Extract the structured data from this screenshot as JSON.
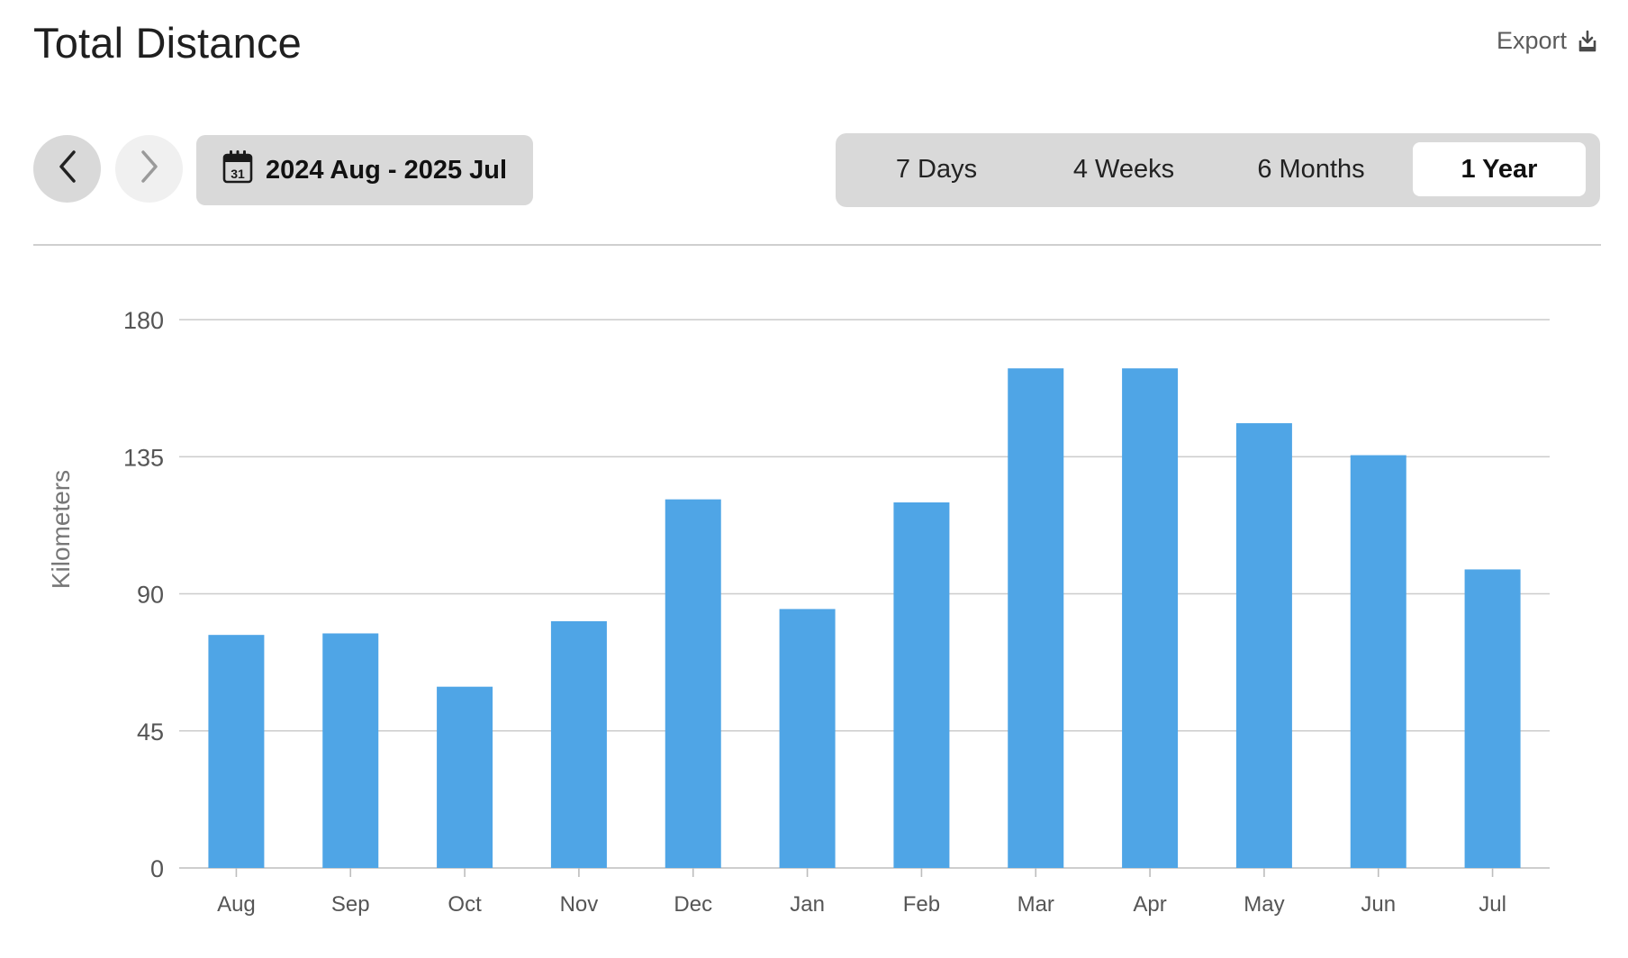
{
  "header": {
    "title": "Total Distance",
    "export_label": "Export"
  },
  "toolbar": {
    "date_range": "2024 Aug - 2025 Jul",
    "calendar_day": "31",
    "tabs": [
      {
        "label": "7 Days",
        "active": false
      },
      {
        "label": "4 Weeks",
        "active": false
      },
      {
        "label": "6 Months",
        "active": false
      },
      {
        "label": "1 Year",
        "active": true
      }
    ]
  },
  "colors": {
    "bar": "#4fa5e6",
    "grid": "#cccccc",
    "axis_text": "#555555"
  },
  "chart_data": {
    "type": "bar",
    "title": "Total Distance",
    "xlabel": "",
    "ylabel": "Kilometers",
    "categories": [
      "Aug",
      "Sep",
      "Oct",
      "Nov",
      "Dec",
      "Jan",
      "Feb",
      "Mar",
      "Apr",
      "May",
      "Jun",
      "Jul"
    ],
    "values": [
      76.5,
      77,
      59.5,
      81,
      121,
      85,
      120,
      164,
      164,
      146,
      135.5,
      98
    ],
    "ylim": [
      0,
      180
    ],
    "yticks": [
      0,
      45,
      90,
      135,
      180
    ],
    "grid": true,
    "legend": "none"
  }
}
